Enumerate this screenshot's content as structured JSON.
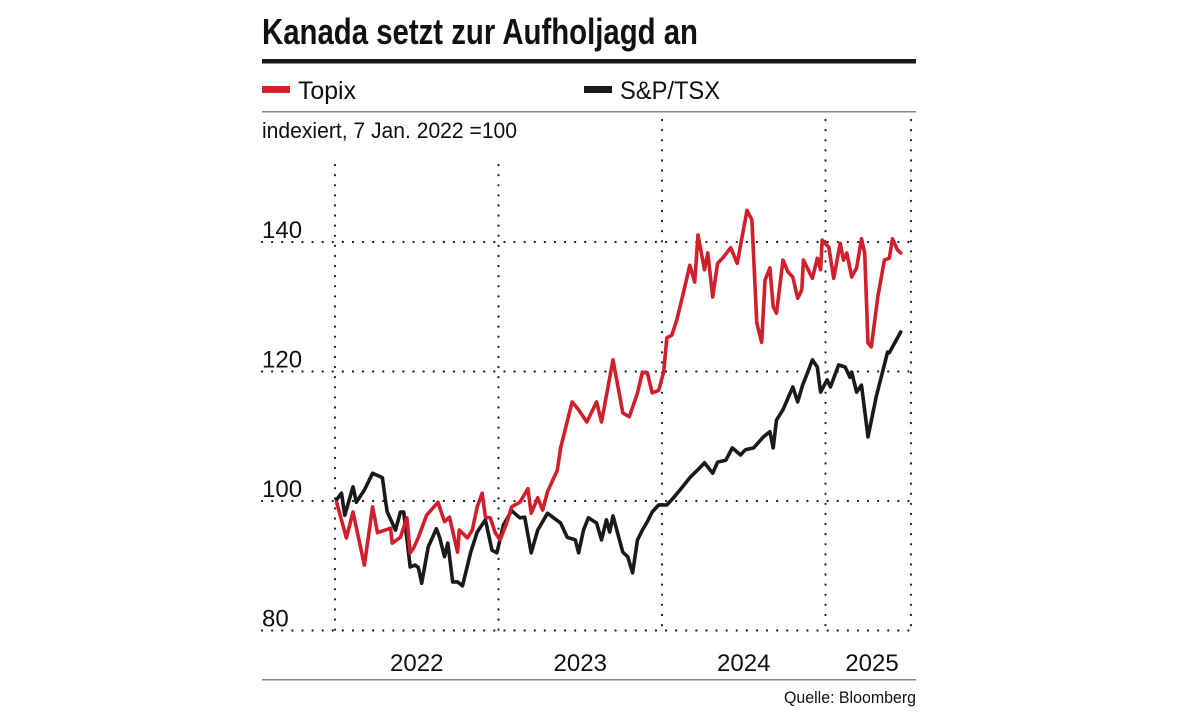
{
  "title": "Kanada setzt zur Aufholjagd an",
  "subtitle": "indexiert, 7 Jan. 2022 =100",
  "source": "Quelle: Bloomberg",
  "chart_data": {
    "type": "line",
    "title": "Kanada setzt zur Aufholjagd an",
    "ylabel": "indexiert, 7 Jan. 2022 =100",
    "xlabel": "",
    "x_unit": "year (decimal)",
    "xlim": [
      2021.55,
      2025.52
    ],
    "ylim": [
      80,
      150
    ],
    "grid": true,
    "legend_position": "top",
    "yticks": [
      "80",
      "100",
      "120",
      "140"
    ],
    "xticks": [
      "2022",
      "2023",
      "2024",
      "2025"
    ],
    "series": [
      {
        "name": "Topix",
        "color": "#d21f2b",
        "points": [
          [
            2022.01,
            99.8
          ],
          [
            2022.07,
            94.3
          ],
          [
            2022.11,
            98.3
          ],
          [
            2022.18,
            90.1
          ],
          [
            2022.23,
            99.1
          ],
          [
            2022.26,
            95.1
          ],
          [
            2022.34,
            95.8
          ],
          [
            2022.35,
            93.5
          ],
          [
            2022.4,
            94.4
          ],
          [
            2022.44,
            97.4
          ],
          [
            2022.46,
            92.0
          ],
          [
            2022.48,
            92.7
          ],
          [
            2022.51,
            94.4
          ],
          [
            2022.56,
            97.8
          ],
          [
            2022.63,
            99.8
          ],
          [
            2022.67,
            96.8
          ],
          [
            2022.7,
            97.5
          ],
          [
            2022.75,
            92.1
          ],
          [
            2022.76,
            95.5
          ],
          [
            2022.81,
            94.3
          ],
          [
            2022.84,
            95.5
          ],
          [
            2022.87,
            99.1
          ],
          [
            2022.9,
            101.2
          ],
          [
            2022.92,
            97.5
          ],
          [
            2022.95,
            97.4
          ],
          [
            2022.98,
            95.1
          ],
          [
            2023.01,
            94.0
          ],
          [
            2023.05,
            96.6
          ],
          [
            2023.08,
            99.1
          ],
          [
            2023.13,
            99.8
          ],
          [
            2023.18,
            101.9
          ],
          [
            2023.2,
            98.1
          ],
          [
            2023.24,
            100.5
          ],
          [
            2023.27,
            98.6
          ],
          [
            2023.3,
            101.4
          ],
          [
            2023.36,
            104.8
          ],
          [
            2023.38,
            108.2
          ],
          [
            2023.45,
            115.3
          ],
          [
            2023.49,
            114.1
          ],
          [
            2023.54,
            112.2
          ],
          [
            2023.6,
            115.3
          ],
          [
            2023.63,
            112.2
          ],
          [
            2023.67,
            117.6
          ],
          [
            2023.7,
            121.8
          ],
          [
            2023.76,
            113.6
          ],
          [
            2023.8,
            113.0
          ],
          [
            2023.85,
            116.7
          ],
          [
            2023.88,
            119.9
          ],
          [
            2023.91,
            119.8
          ],
          [
            2023.94,
            116.7
          ],
          [
            2023.98,
            117.1
          ],
          [
            2024.01,
            119.9
          ],
          [
            2024.03,
            125.2
          ],
          [
            2024.06,
            125.6
          ],
          [
            2024.09,
            127.9
          ],
          [
            2024.13,
            132.1
          ],
          [
            2024.17,
            136.4
          ],
          [
            2024.2,
            133.8
          ],
          [
            2024.22,
            141.1
          ],
          [
            2024.26,
            135.7
          ],
          [
            2024.28,
            138.3
          ],
          [
            2024.31,
            131.5
          ],
          [
            2024.34,
            136.7
          ],
          [
            2024.37,
            137.5
          ],
          [
            2024.42,
            139.1
          ],
          [
            2024.46,
            136.7
          ],
          [
            2024.52,
            144.9
          ],
          [
            2024.55,
            143.4
          ],
          [
            2024.58,
            127.5
          ],
          [
            2024.61,
            124.5
          ],
          [
            2024.63,
            134.1
          ],
          [
            2024.66,
            136.0
          ],
          [
            2024.68,
            130.0
          ],
          [
            2024.7,
            129.0
          ],
          [
            2024.74,
            137.2
          ],
          [
            2024.77,
            135.4
          ],
          [
            2024.8,
            134.6
          ],
          [
            2024.83,
            131.3
          ],
          [
            2024.855,
            132.6
          ],
          [
            2024.865,
            137.2
          ],
          [
            2024.92,
            134.4
          ],
          [
            2024.95,
            137.5
          ],
          [
            2024.97,
            135.7
          ],
          [
            2024.98,
            140.3
          ],
          [
            2025.02,
            139.2
          ],
          [
            2025.05,
            134.4
          ],
          [
            2025.09,
            139.8
          ],
          [
            2025.11,
            137.2
          ],
          [
            2025.13,
            138.3
          ],
          [
            2025.16,
            134.6
          ],
          [
            2025.19,
            136.0
          ],
          [
            2025.22,
            140.5
          ],
          [
            2025.24,
            138.3
          ],
          [
            2025.26,
            124.4
          ],
          [
            2025.28,
            123.8
          ],
          [
            2025.32,
            131.5
          ],
          [
            2025.36,
            137.2
          ],
          [
            2025.39,
            137.5
          ],
          [
            2025.41,
            140.5
          ],
          [
            2025.44,
            138.8
          ],
          [
            2025.46,
            138.3
          ]
        ]
      },
      {
        "name": "S&P/TSX",
        "color": "#1a1a1a",
        "points": [
          [
            2022.01,
            100.2
          ],
          [
            2022.04,
            101.2
          ],
          [
            2022.06,
            97.8
          ],
          [
            2022.11,
            102.2
          ],
          [
            2022.13,
            99.8
          ],
          [
            2022.18,
            101.7
          ],
          [
            2022.23,
            104.3
          ],
          [
            2022.29,
            103.6
          ],
          [
            2022.31,
            99.8
          ],
          [
            2022.32,
            98.3
          ],
          [
            2022.37,
            95.5
          ],
          [
            2022.4,
            98.3
          ],
          [
            2022.42,
            98.3
          ],
          [
            2022.46,
            89.8
          ],
          [
            2022.49,
            90.1
          ],
          [
            2022.51,
            89.7
          ],
          [
            2022.53,
            87.3
          ],
          [
            2022.57,
            92.9
          ],
          [
            2022.62,
            95.7
          ],
          [
            2022.64,
            94.4
          ],
          [
            2022.67,
            91.4
          ],
          [
            2022.69,
            93.5
          ],
          [
            2022.72,
            87.5
          ],
          [
            2022.75,
            87.5
          ],
          [
            2022.78,
            86.9
          ],
          [
            2022.83,
            92.1
          ],
          [
            2022.87,
            95.2
          ],
          [
            2022.92,
            97.1
          ],
          [
            2022.96,
            92.4
          ],
          [
            2022.99,
            92.0
          ],
          [
            2023.03,
            96.3
          ],
          [
            2023.08,
            98.5
          ],
          [
            2023.13,
            97.4
          ],
          [
            2023.16,
            97.5
          ],
          [
            2023.2,
            92.0
          ],
          [
            2023.24,
            95.5
          ],
          [
            2023.3,
            98.1
          ],
          [
            2023.38,
            96.6
          ],
          [
            2023.42,
            94.4
          ],
          [
            2023.47,
            94.0
          ],
          [
            2023.49,
            92.0
          ],
          [
            2023.52,
            95.5
          ],
          [
            2023.55,
            97.4
          ],
          [
            2023.6,
            96.6
          ],
          [
            2023.63,
            94.0
          ],
          [
            2023.66,
            97.1
          ],
          [
            2023.68,
            95.2
          ],
          [
            2023.7,
            97.7
          ],
          [
            2023.76,
            92.1
          ],
          [
            2023.79,
            91.4
          ],
          [
            2023.82,
            88.9
          ],
          [
            2023.85,
            94.0
          ],
          [
            2023.88,
            95.5
          ],
          [
            2023.91,
            96.8
          ],
          [
            2023.94,
            98.3
          ],
          [
            2023.98,
            99.4
          ],
          [
            2024.03,
            99.4
          ],
          [
            2024.06,
            100.2
          ],
          [
            2024.11,
            101.7
          ],
          [
            2024.17,
            103.6
          ],
          [
            2024.23,
            105.1
          ],
          [
            2024.26,
            105.9
          ],
          [
            2024.31,
            104.3
          ],
          [
            2024.34,
            106.0
          ],
          [
            2024.39,
            106.3
          ],
          [
            2024.43,
            108.2
          ],
          [
            2024.48,
            107.1
          ],
          [
            2024.51,
            107.9
          ],
          [
            2024.56,
            108.2
          ],
          [
            2024.62,
            109.9
          ],
          [
            2024.66,
            110.7
          ],
          [
            2024.68,
            108.2
          ],
          [
            2024.7,
            112.5
          ],
          [
            2024.74,
            114.1
          ],
          [
            2024.8,
            117.6
          ],
          [
            2024.83,
            115.3
          ],
          [
            2024.86,
            117.9
          ],
          [
            2024.89,
            119.8
          ],
          [
            2024.92,
            121.8
          ],
          [
            2024.95,
            120.7
          ],
          [
            2024.97,
            116.8
          ],
          [
            2025.01,
            118.7
          ],
          [
            2025.03,
            117.6
          ],
          [
            2025.08,
            121.0
          ],
          [
            2025.12,
            120.7
          ],
          [
            2025.15,
            119.1
          ],
          [
            2025.16,
            119.9
          ],
          [
            2025.19,
            116.8
          ],
          [
            2025.22,
            117.9
          ],
          [
            2025.26,
            109.9
          ],
          [
            2025.31,
            116.1
          ],
          [
            2025.38,
            123.0
          ],
          [
            2025.39,
            122.9
          ],
          [
            2025.46,
            126.1
          ]
        ]
      }
    ]
  }
}
